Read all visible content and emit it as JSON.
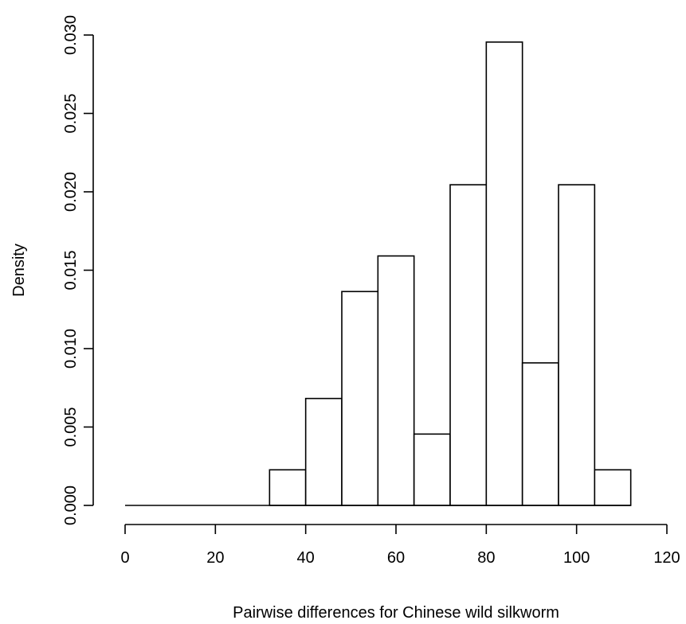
{
  "chart_data": {
    "type": "histogram",
    "title": "",
    "xlabel": "Pairwise differences for Chinese wild silkworm",
    "ylabel": "Density",
    "xlim": [
      0,
      120
    ],
    "ylim": [
      0,
      0.03
    ],
    "x_ticks": [
      "0",
      "20",
      "40",
      "60",
      "80",
      "100",
      "120"
    ],
    "y_ticks": [
      "0.000",
      "0.005",
      "0.010",
      "0.015",
      "0.020",
      "0.025",
      "0.030"
    ],
    "grid": false,
    "legend": "none",
    "bin_edges": [
      0,
      8,
      16,
      24,
      32,
      40,
      48,
      56,
      64,
      72,
      80,
      88,
      96,
      104,
      112
    ],
    "values": [
      0,
      0,
      0,
      0,
      0.00227,
      0.00682,
      0.01364,
      0.01591,
      0.00455,
      0.02045,
      0.02955,
      0.00909,
      0.02045,
      0.00227
    ]
  }
}
